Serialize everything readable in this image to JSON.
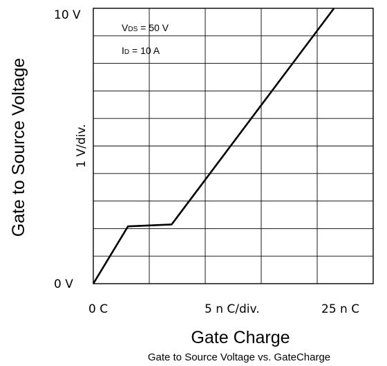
{
  "chart_data": {
    "type": "line",
    "title": "",
    "caption": "Gate to Source Voltage vs. GateCharge",
    "xlabel": "Gate Charge",
    "ylabel": "Gate to Source Voltage",
    "y_scale_label": "1  V/div.",
    "x_tick_labels": [
      "0  C",
      "5 n C/div.",
      "25 n C"
    ],
    "y_tick_labels": [
      "0  V",
      "10  V"
    ],
    "xlim": [
      0,
      25
    ],
    "ylim": [
      0,
      10
    ],
    "grid": true,
    "annotations": [
      {
        "main": "V",
        "sub": "DS",
        "rest": " = 50 V"
      },
      {
        "main": "I",
        "sub": "D",
        "rest": " = 10 A"
      }
    ],
    "series": [
      {
        "x": [
          0,
          3.1,
          7,
          21.5
        ],
        "y": [
          0,
          2.08,
          2.15,
          10
        ]
      }
    ]
  }
}
